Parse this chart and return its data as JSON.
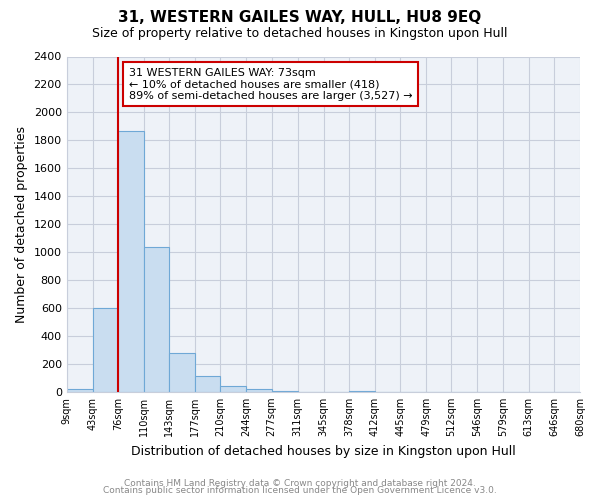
{
  "title": "31, WESTERN GAILES WAY, HULL, HU8 9EQ",
  "subtitle": "Size of property relative to detached houses in Kingston upon Hull",
  "xlabel": "Distribution of detached houses by size in Kingston upon Hull",
  "ylabel": "Number of detached properties",
  "bin_edges": [
    9,
    43,
    76,
    110,
    143,
    177,
    210,
    244,
    277,
    311,
    345,
    378,
    412,
    445,
    479,
    512,
    546,
    579,
    613,
    646,
    680
  ],
  "bar_heights": [
    20,
    600,
    1870,
    1040,
    280,
    110,
    45,
    20,
    5,
    0,
    0,
    5,
    0,
    0,
    0,
    0,
    0,
    0,
    0,
    0
  ],
  "bar_color": "#c9ddf0",
  "bar_edge_color": "#6fa8d6",
  "property_line_x": 76,
  "property_line_color": "#cc0000",
  "annotation_title": "31 WESTERN GAILES WAY: 73sqm",
  "annotation_line1": "← 10% of detached houses are smaller (418)",
  "annotation_line2": "89% of semi-detached houses are larger (3,527) →",
  "annotation_box_color": "#ffffff",
  "annotation_box_edge_color": "#cc0000",
  "ylim": [
    0,
    2400
  ],
  "yticks": [
    0,
    200,
    400,
    600,
    800,
    1000,
    1200,
    1400,
    1600,
    1800,
    2000,
    2200,
    2400
  ],
  "fig_background_color": "#ffffff",
  "plot_background_color": "#eef2f8",
  "grid_color": "#c8cedb",
  "footer_line1": "Contains HM Land Registry data © Crown copyright and database right 2024.",
  "footer_line2": "Contains public sector information licensed under the Open Government Licence v3.0."
}
